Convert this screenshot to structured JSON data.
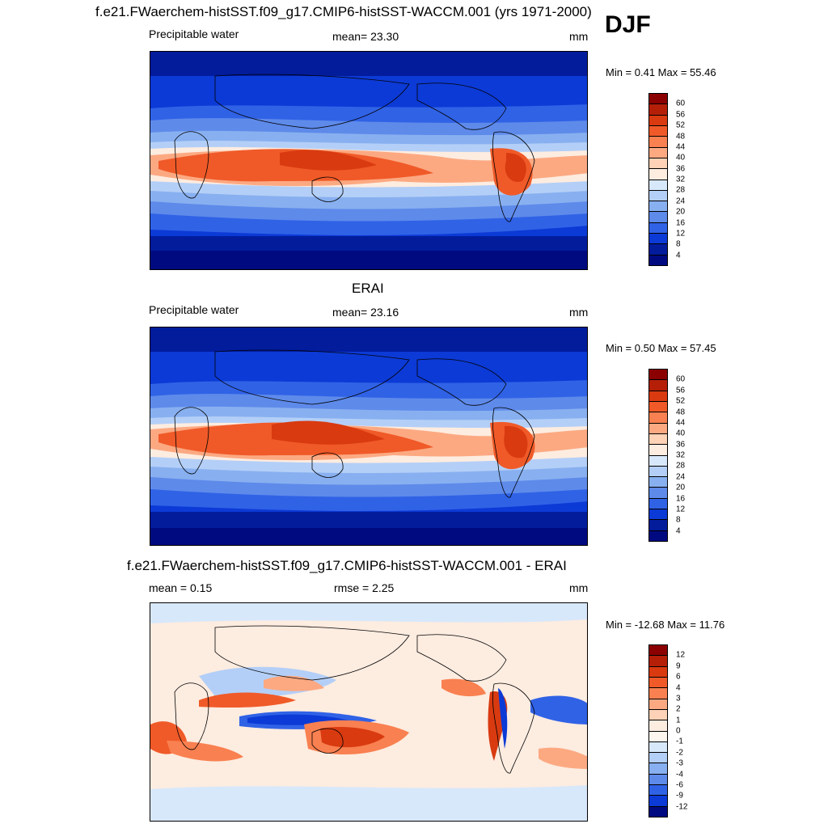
{
  "season": "DJF",
  "panels": [
    {
      "title": "f.e21.FWaerchem-histSST.f09_g17.CMIP6-histSST-WACCM.001 (yrs 1971-2000)",
      "left_label": "Precipitable water",
      "center_label": "mean=  23.30",
      "units": "mm",
      "minmax": "Min =   0.41 Max =  55.46",
      "levels": [
        "60",
        "56",
        "52",
        "48",
        "44",
        "40",
        "36",
        "32",
        "28",
        "24",
        "20",
        "16",
        "12",
        "8",
        "4"
      ],
      "kind": "abs"
    },
    {
      "title": "ERAI",
      "left_label": "Precipitable water",
      "center_label": "mean=  23.16",
      "units": "mm",
      "minmax": "Min =   0.50 Max =  57.45",
      "levels": [
        "60",
        "56",
        "52",
        "48",
        "44",
        "40",
        "36",
        "32",
        "28",
        "24",
        "20",
        "16",
        "12",
        "8",
        "4"
      ],
      "kind": "abs"
    },
    {
      "title": "f.e21.FWaerchem-histSST.f09_g17.CMIP6-histSST-WACCM.001 - ERAI",
      "left_label": "mean =   0.15",
      "center_label": "rmse =   2.25",
      "units": "mm",
      "minmax": "Min = -12.68 Max =  11.76",
      "levels": [
        "12",
        "9",
        "6",
        "4",
        "3",
        "2",
        "1",
        "0",
        "-1",
        "-2",
        "-3",
        "-4",
        "-6",
        "-9",
        "-12"
      ],
      "kind": "diff"
    }
  ],
  "colors": {
    "abs_scale": [
      "#8b0000",
      "#b51f08",
      "#d93a10",
      "#f05a28",
      "#f98050",
      "#fca982",
      "#fdd2b6",
      "#fdece0",
      "#d8e8fb",
      "#b4cff7",
      "#88b0f0",
      "#5e8aea",
      "#3062e6",
      "#0c3ad6",
      "#021c9c",
      "#000a80"
    ],
    "diff_scale": [
      "#8b0000",
      "#b51f08",
      "#d93a10",
      "#f05a28",
      "#f98050",
      "#fca982",
      "#fdd2b6",
      "#fdece0",
      "#fdf6ee",
      "#d8e8fb",
      "#b4cff7",
      "#88b0f0",
      "#5e8aea",
      "#3062e6",
      "#0c3ad6",
      "#000a80"
    ]
  }
}
